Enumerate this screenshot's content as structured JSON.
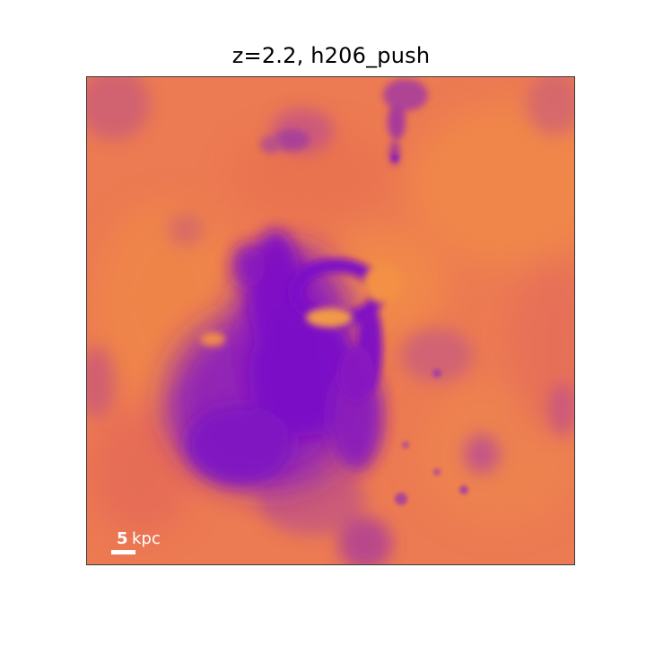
{
  "title": "z=2.2, h206_push",
  "scale_bar": {
    "value": "5",
    "unit": "kpc"
  },
  "colors": {
    "background_gas": "#ee7d50",
    "warm_gas": "#f08a4a",
    "dense_gas": "#8a1ac4",
    "deep_dense_gas": "#6a00c8",
    "mid_gas": "#b63f9a"
  }
}
